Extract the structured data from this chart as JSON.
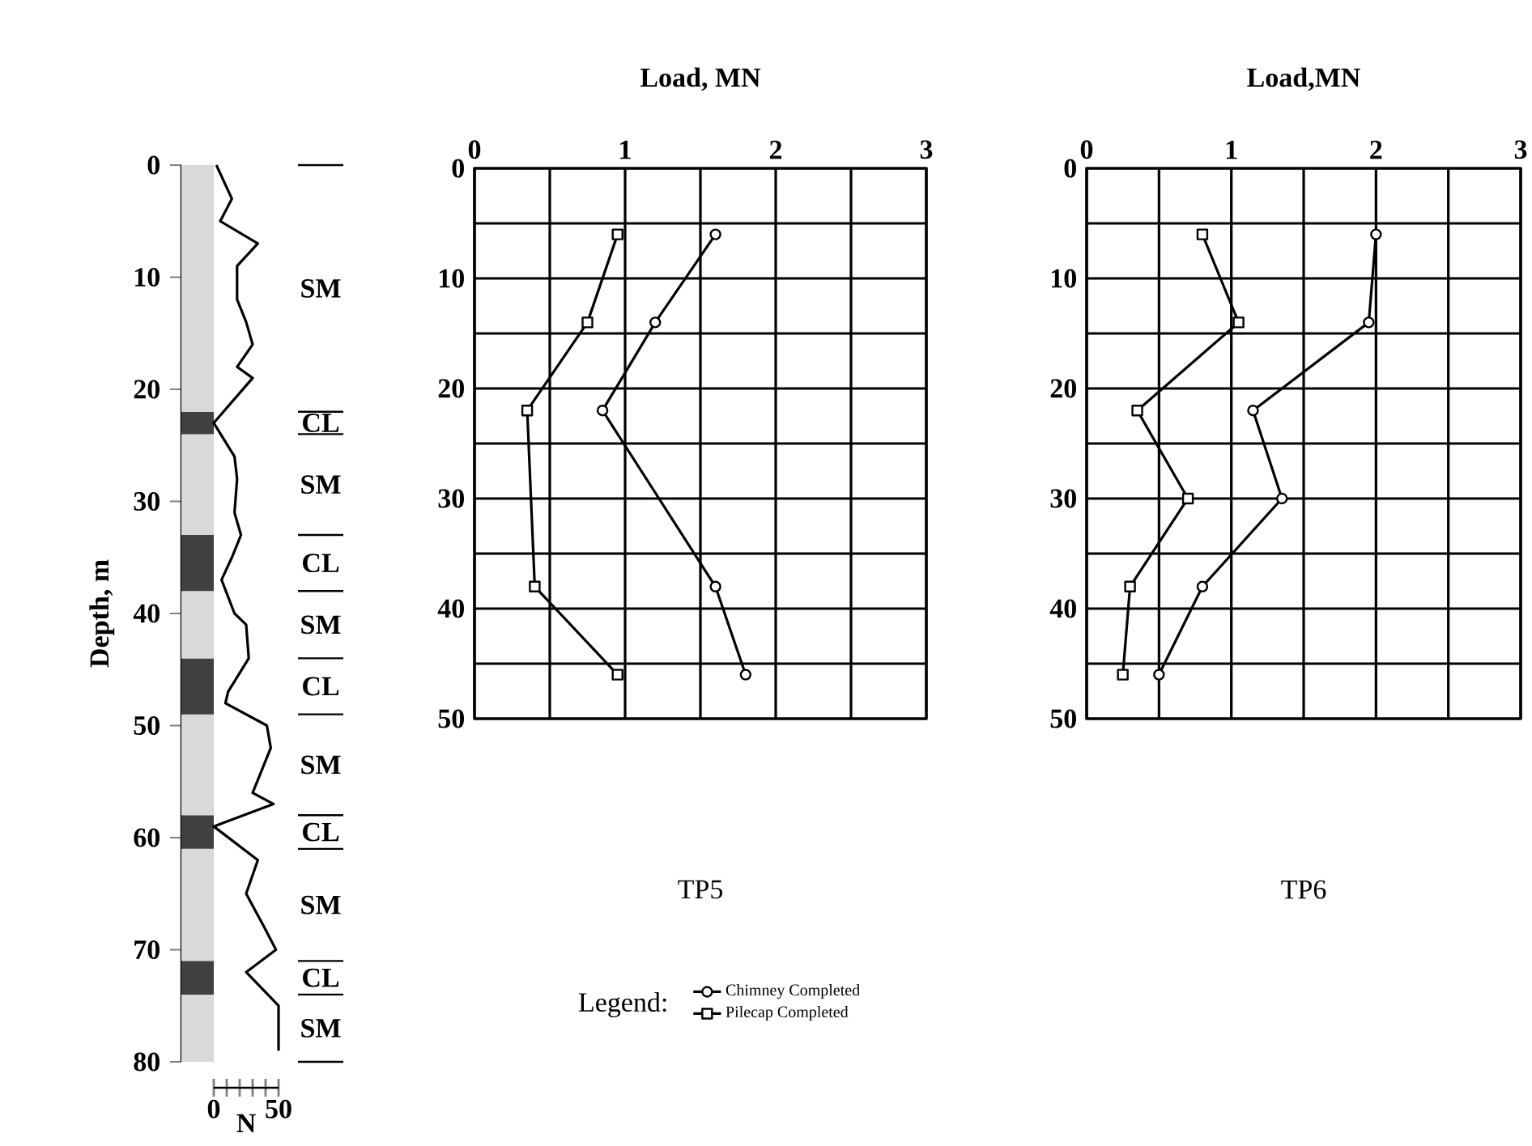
{
  "chart_data": [
    {
      "type": "bar",
      "stacked": true,
      "categories": [
        null
      ],
      "ylabel": "Depth, m",
      "ylim": [
        80,
        0
      ],
      "yticks": [
        0,
        10,
        20,
        30,
        40,
        50,
        60,
        70,
        80
      ],
      "series": [
        {
          "name": "SM",
          "color": "#d9d9d9",
          "values": [
            22
          ]
        },
        {
          "name": "CL",
          "color": "#404040",
          "values": [
            2
          ]
        },
        {
          "name": "SM",
          "color": "#d9d9d9",
          "values": [
            9
          ]
        },
        {
          "name": "CL",
          "color": "#404040",
          "values": [
            5
          ]
        },
        {
          "name": "SM",
          "color": "#d9d9d9",
          "values": [
            6
          ]
        },
        {
          "name": "CL",
          "color": "#404040",
          "values": [
            5
          ]
        },
        {
          "name": "SM",
          "color": "#d9d9d9",
          "values": [
            9
          ]
        },
        {
          "name": "CL",
          "color": "#404040",
          "values": [
            3
          ]
        },
        {
          "name": "SM",
          "color": "#d9d9d9",
          "values": [
            10
          ]
        },
        {
          "name": "CL",
          "color": "#404040",
          "values": [
            3
          ]
        },
        {
          "name": "SM",
          "color": "#d9d9d9",
          "values": [
            6
          ]
        }
      ]
    },
    {
      "type": "line",
      "xlabel": "N",
      "xlim": [
        0,
        50
      ],
      "xticks": [
        0,
        {
          "value": 10,
          "label": null
        },
        {
          "value": 20,
          "label": null
        },
        {
          "value": 30,
          "label": null
        },
        {
          "value": 40,
          "label": null
        },
        50
      ],
      "ylim": [
        80,
        0
      ],
      "tick_labels": "x",
      "series": [
        {
          "color": "#000000",
          "x": [
            2,
            14,
            5,
            34,
            18,
            18,
            25,
            30,
            18,
            30,
            0,
            16,
            18,
            16,
            21,
            14,
            6,
            16,
            25,
            27,
            11,
            9,
            41,
            44,
            30,
            46,
            0,
            34,
            25,
            39,
            48,
            25,
            50,
            50
          ],
          "values": [
            0,
            3,
            5,
            7,
            9,
            12,
            14,
            16,
            18,
            19,
            23,
            26,
            28,
            31,
            33,
            35,
            37,
            40,
            41,
            44,
            47,
            48,
            50,
            52,
            56,
            57,
            59,
            62,
            65,
            68,
            70,
            72,
            75,
            79
          ]
        }
      ]
    },
    {
      "type": "line",
      "title": "TP5",
      "xlabel": "Load, MN",
      "xlim": [
        0,
        3
      ],
      "xticks": [
        0,
        {
          "value": 0.5,
          "label": null
        },
        1,
        {
          "value": 1.5,
          "label": null
        },
        2,
        {
          "value": 2.5,
          "label": null
        },
        3
      ],
      "ylim": [
        50,
        0
      ],
      "yticks": [
        0,
        {
          "value": 5,
          "label": null
        },
        10,
        {
          "value": 15,
          "label": null
        },
        20,
        {
          "value": 25,
          "label": null
        },
        30,
        {
          "value": 35,
          "label": null
        },
        40,
        {
          "value": 45,
          "label": null
        },
        50
      ],
      "grid": true,
      "legend": "bottom",
      "legend_title": "Legend:",
      "series": [
        {
          "name": "Chimney Completed",
          "color": "#000000",
          "marker": "circle",
          "x": [
            1.6,
            1.2,
            0.85,
            1.6,
            1.8
          ],
          "values": [
            6,
            14,
            22,
            38,
            46
          ]
        },
        {
          "name": "Pilecap Completed",
          "color": "#000000",
          "marker": "square",
          "x": [
            0.95,
            0.75,
            0.35,
            0.4,
            0.95
          ],
          "values": [
            6,
            14,
            22,
            38,
            46
          ]
        }
      ]
    },
    {
      "type": "line",
      "title": "TP6",
      "xlabel": "Load,MN",
      "xlim": [
        0,
        3
      ],
      "xticks": [
        0,
        {
          "value": 0.5,
          "label": null
        },
        1,
        {
          "value": 1.5,
          "label": null
        },
        2,
        {
          "value": 2.5,
          "label": null
        },
        3
      ],
      "ylim": [
        50,
        0
      ],
      "yticks": [
        0,
        {
          "value": 5,
          "label": null
        },
        10,
        {
          "value": 15,
          "label": null
        },
        20,
        {
          "value": 25,
          "label": null
        },
        30,
        {
          "value": 35,
          "label": null
        },
        40,
        {
          "value": 45,
          "label": null
        },
        50
      ],
      "grid": true,
      "series": [
        {
          "color": "#000000",
          "marker": "circle",
          "x": [
            2.0,
            1.95,
            1.15,
            1.35,
            0.8,
            0.5
          ],
          "values": [
            6,
            14,
            22,
            30,
            38,
            46
          ]
        },
        {
          "color": "#000000",
          "marker": "square",
          "x": [
            0.8,
            1.05,
            0.35,
            0.7,
            0.3,
            0.25
          ],
          "values": [
            6,
            14,
            22,
            30,
            38,
            46
          ]
        }
      ]
    }
  ]
}
